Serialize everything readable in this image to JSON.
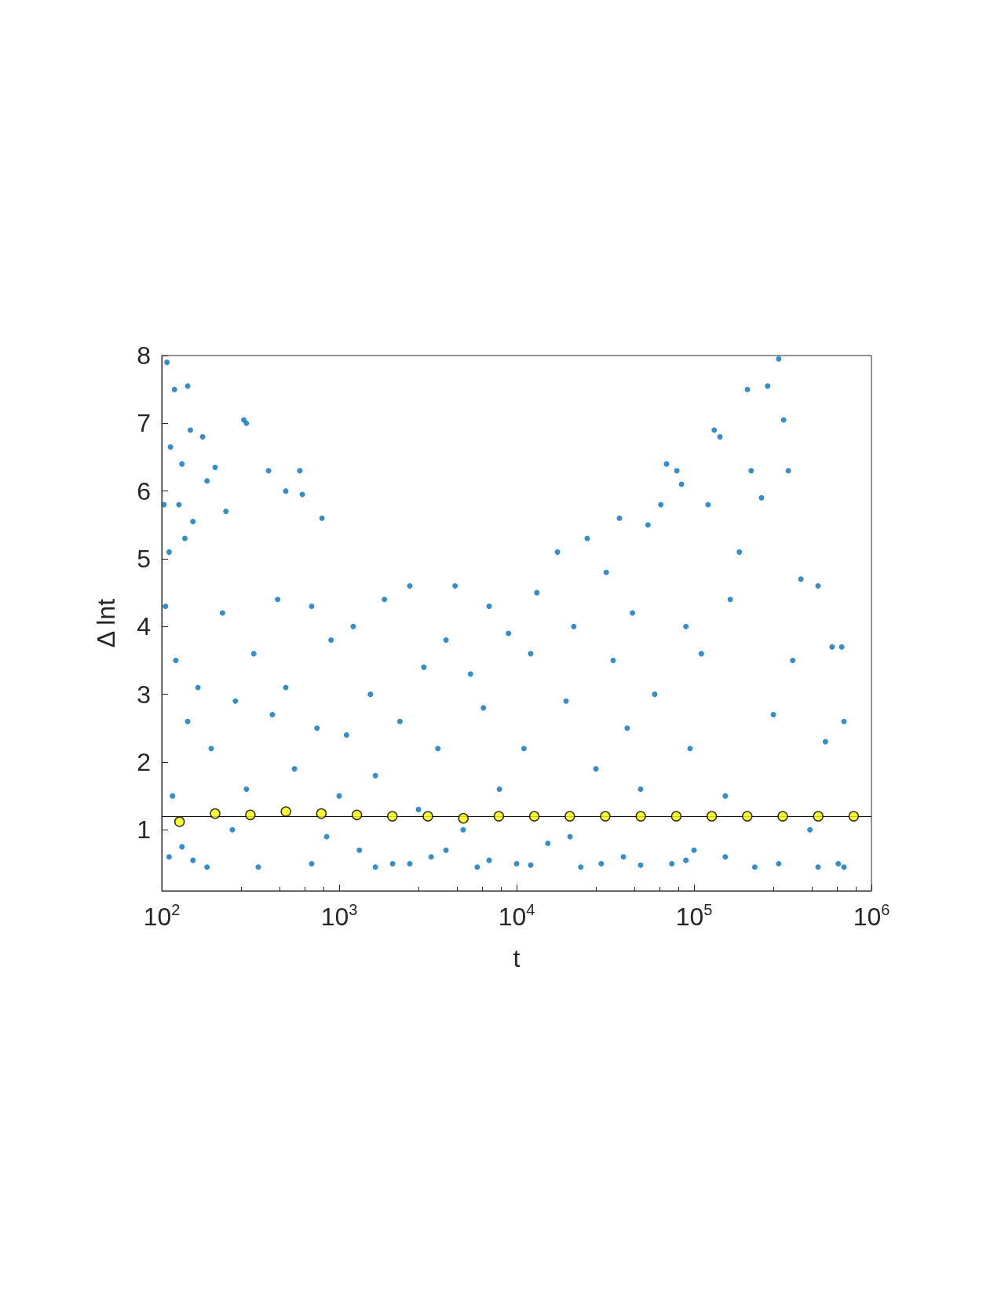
{
  "chart_data": {
    "type": "scatter",
    "xlabel": "t",
    "ylabel": "Δ lnt",
    "log": "x",
    "xlim": [
      100,
      1000000
    ],
    "ylim": [
      0.1,
      8
    ],
    "xticks": [
      {
        "value": 100,
        "label": "10$^{2}$"
      },
      {
        "value": 1000,
        "label": "10$^{3}$"
      },
      {
        "value": 10000,
        "label": "10$^{4}$"
      },
      {
        "value": 100000,
        "label": "10$^{5}$"
      },
      {
        "value": 1000000,
        "label": "10$^{6}$"
      }
    ],
    "yticks": [
      1,
      2,
      3,
      4,
      5,
      6,
      7,
      8
    ],
    "grid": false,
    "marker": "circle",
    "ref_lines": [
      {
        "axis": "y",
        "value": 1.2,
        "color": "#000000"
      }
    ],
    "series": [
      {
        "color": "#0072bd",
        "x": [
          107,
          118,
          140,
          112,
          130,
          145,
          170,
          125,
          103,
          135,
          110,
          150,
          200,
          180,
          290,
          300,
          230,
          400,
          600,
          500,
          620,
          800,
          105,
          120,
          140,
          160,
          190,
          115,
          130,
          150,
          110,
          220,
          260,
          330,
          300,
          350,
          420,
          450,
          500,
          560,
          700,
          750,
          900,
          850,
          1000,
          1200,
          1100,
          1300,
          1500,
          1600,
          1800,
          2000,
          2200,
          2500,
          2800,
          3000,
          3300,
          3600,
          4000,
          4500,
          5000,
          5500,
          6000,
          6500,
          7000,
          8000,
          9000,
          10000,
          11000,
          12000,
          13000,
          15000,
          17000,
          19000,
          21000,
          23000,
          25000,
          28000,
          32000,
          35000,
          38000,
          40000,
          42000,
          45000,
          50000,
          55000,
          60000,
          65000,
          70000,
          75000,
          80000,
          85000,
          90000,
          95000,
          100000,
          110000,
          120000,
          130000,
          140000,
          150000,
          160000,
          180000,
          200000,
          210000,
          220000,
          240000,
          260000,
          280000,
          300000,
          320000,
          340000,
          360000,
          400000,
          450000,
          500000,
          550000,
          600000,
          650000,
          700000,
          680000,
          2500,
          4000,
          7000,
          12000,
          20000,
          30000,
          50000,
          90000,
          150000,
          300000,
          500000,
          700000,
          250,
          180,
          700,
          1600
        ],
        "values": [
          7.9,
          7.5,
          7.55,
          6.65,
          6.4,
          6.9,
          6.8,
          5.8,
          5.8,
          5.3,
          5.1,
          5.55,
          6.35,
          6.15,
          7.05,
          7.0,
          5.7,
          6.3,
          6.3,
          6.0,
          5.95,
          5.6,
          4.3,
          3.5,
          2.6,
          3.1,
          2.2,
          1.5,
          0.75,
          0.55,
          0.6,
          4.2,
          2.9,
          3.6,
          1.6,
          0.45,
          2.7,
          4.4,
          3.1,
          1.9,
          4.3,
          2.5,
          3.8,
          0.9,
          1.5,
          4.0,
          2.4,
          0.7,
          3.0,
          1.8,
          4.4,
          0.5,
          2.6,
          4.6,
          1.3,
          3.4,
          0.6,
          2.2,
          3.8,
          4.6,
          1.0,
          3.3,
          0.45,
          2.8,
          4.3,
          1.6,
          3.9,
          0.5,
          2.2,
          3.6,
          4.5,
          0.8,
          5.1,
          2.9,
          4.0,
          0.45,
          5.3,
          1.9,
          4.8,
          3.5,
          5.6,
          0.6,
          2.5,
          4.2,
          1.6,
          5.5,
          3.0,
          5.8,
          6.4,
          0.5,
          6.3,
          6.1,
          4.0,
          2.2,
          0.7,
          3.6,
          5.8,
          6.9,
          6.8,
          1.5,
          4.4,
          5.1,
          7.5,
          6.3,
          0.45,
          5.9,
          7.55,
          2.7,
          7.95,
          7.05,
          6.3,
          3.5,
          4.7,
          1.0,
          4.6,
          2.3,
          3.7,
          0.5,
          2.6,
          3.7,
          0.5,
          0.7,
          0.55,
          0.48,
          0.9,
          0.5,
          0.48,
          0.55,
          0.6,
          0.5,
          0.45,
          0.45,
          1.0,
          0.45,
          0.5,
          0.45
        ]
      },
      {
        "color": "#ffff00",
        "x": [
          126,
          200,
          316,
          501,
          794,
          1259,
          1995,
          3162,
          5012,
          7943,
          12589,
          19953,
          31623,
          50119,
          79433,
          125893,
          199526,
          316228,
          501187,
          794328
        ],
        "values": [
          1.12,
          1.24,
          1.22,
          1.27,
          1.24,
          1.22,
          1.2,
          1.2,
          1.17,
          1.2,
          1.2,
          1.2,
          1.2,
          1.2,
          1.2,
          1.2,
          1.2,
          1.2,
          1.2,
          1.2
        ]
      }
    ]
  }
}
